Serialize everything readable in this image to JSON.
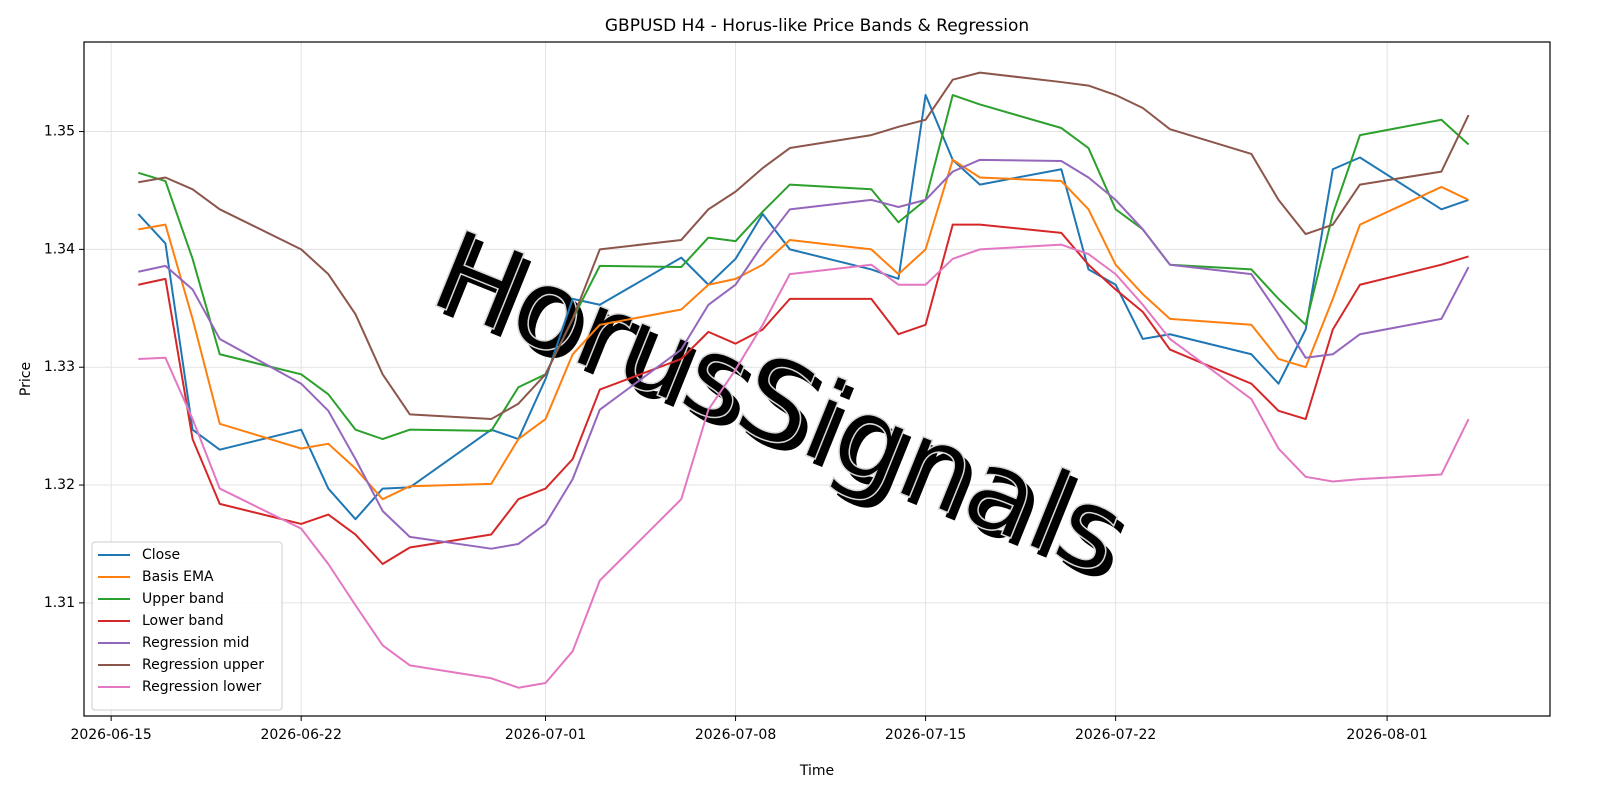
{
  "chart_data": {
    "type": "line",
    "title": "GBPUSD H4 - Horus-like Price Bands & Regression",
    "xlabel": "Time",
    "ylabel": "Price",
    "watermark": "HorusSignals",
    "grid": true,
    "legend": "lower left",
    "xlim": [
      "2026-06-14",
      "2026-08-07"
    ],
    "xticks": [
      "2026-06-15",
      "2026-06-22",
      "2026-07-01",
      "2026-07-08",
      "2026-07-15",
      "2026-07-22",
      "2026-08-01"
    ],
    "ylim": [
      1.3004,
      1.3576
    ],
    "yticks": [
      1.31,
      1.32,
      1.33,
      1.34,
      1.35
    ],
    "x": [
      "2026-06-16",
      "2026-06-17",
      "2026-06-18",
      "2026-06-19",
      "2026-06-22",
      "2026-06-23",
      "2026-06-24",
      "2026-06-25",
      "2026-06-26",
      "2026-06-29",
      "2026-06-30",
      "2026-07-01",
      "2026-07-02",
      "2026-07-03",
      "2026-07-06",
      "2026-07-07",
      "2026-07-08",
      "2026-07-09",
      "2026-07-10",
      "2026-07-13",
      "2026-07-14",
      "2026-07-15",
      "2026-07-16",
      "2026-07-17",
      "2026-07-20",
      "2026-07-21",
      "2026-07-22",
      "2026-07-23",
      "2026-07-24",
      "2026-07-27",
      "2026-07-28",
      "2026-07-29",
      "2026-07-30",
      "2026-07-31",
      "2026-08-03",
      "2026-08-04"
    ],
    "series": [
      {
        "name": "Close",
        "color": "#1f77b4",
        "values": [
          1.343,
          1.3405,
          1.3247,
          1.323,
          1.3247,
          1.3197,
          1.3171,
          1.3197,
          1.3198,
          1.3247,
          1.3239,
          1.329,
          1.3358,
          1.3353,
          1.3393,
          1.337,
          1.3392,
          1.343,
          1.34,
          1.3383,
          1.3375,
          1.3531,
          1.3476,
          1.3455,
          1.3468,
          1.3383,
          1.337,
          1.3324,
          1.3328,
          1.3311,
          1.3286,
          1.3332,
          1.3468,
          1.3478,
          1.3434,
          1.3442
        ]
      },
      {
        "name": "Basis EMA",
        "color": "#ff7f0e",
        "values": [
          1.3417,
          1.3421,
          1.3341,
          1.3252,
          1.3231,
          1.3235,
          1.3214,
          1.3188,
          1.3199,
          1.3201,
          1.3239,
          1.3256,
          1.3311,
          1.3336,
          1.3349,
          1.337,
          1.3375,
          1.3387,
          1.3408,
          1.34,
          1.3379,
          1.34,
          1.3476,
          1.3461,
          1.3458,
          1.3434,
          1.3387,
          1.3362,
          1.3341,
          1.3336,
          1.3307,
          1.33,
          1.3358,
          1.3421,
          1.3453,
          1.3442
        ]
      },
      {
        "name": "Upper band",
        "color": "#2ca02c",
        "values": [
          1.3465,
          1.3458,
          1.3392,
          1.3311,
          1.3294,
          1.3277,
          1.3247,
          1.3239,
          1.3247,
          1.3246,
          1.3283,
          1.3294,
          1.3341,
          1.3386,
          1.3385,
          1.341,
          1.3407,
          1.3432,
          1.3455,
          1.3451,
          1.3423,
          1.3442,
          1.3531,
          1.3523,
          1.3503,
          1.3486,
          1.3434,
          1.3417,
          1.3387,
          1.3383,
          1.3358,
          1.3336,
          1.343,
          1.3497,
          1.351,
          1.3489
        ]
      },
      {
        "name": "Lower band",
        "color": "#d62728",
        "values": [
          1.337,
          1.3375,
          1.3239,
          1.3184,
          1.3167,
          1.3175,
          1.3158,
          1.3133,
          1.3147,
          1.3158,
          1.3188,
          1.3197,
          1.3222,
          1.3281,
          1.3307,
          1.333,
          1.332,
          1.3332,
          1.3358,
          1.3358,
          1.3328,
          1.3336,
          1.3421,
          1.3421,
          1.3414,
          1.3387,
          1.3366,
          1.3347,
          1.3315,
          1.3286,
          1.3263,
          1.3256,
          1.3332,
          1.337,
          1.3387,
          1.3394
        ]
      },
      {
        "name": "Regression mid",
        "color": "#9467bd",
        "values": [
          1.3381,
          1.3386,
          1.3366,
          1.3324,
          1.3286,
          1.3263,
          1.3222,
          1.3178,
          1.3156,
          1.3146,
          1.315,
          1.3167,
          1.3205,
          1.3264,
          1.3315,
          1.3353,
          1.337,
          1.3404,
          1.3434,
          1.3442,
          1.3436,
          1.3442,
          1.3466,
          1.3476,
          1.3475,
          1.3461,
          1.3442,
          1.3417,
          1.3387,
          1.3379,
          1.3345,
          1.3308,
          1.3311,
          1.3328,
          1.3341,
          1.3385
        ]
      },
      {
        "name": "Regression upper",
        "color": "#8c564b",
        "values": [
          1.3457,
          1.3461,
          1.3451,
          1.3434,
          1.34,
          1.3379,
          1.3345,
          1.3294,
          1.326,
          1.3256,
          1.3269,
          1.3294,
          1.3341,
          1.34,
          1.3408,
          1.3434,
          1.3449,
          1.3469,
          1.3486,
          1.3497,
          1.3504,
          1.351,
          1.3544,
          1.355,
          1.3542,
          1.3539,
          1.3531,
          1.352,
          1.3502,
          1.3481,
          1.3442,
          1.3413,
          1.3421,
          1.3455,
          1.3466,
          1.3514
        ]
      },
      {
        "name": "Regression lower",
        "color": "#e377c2",
        "values": [
          1.3307,
          1.3308,
          1.3256,
          1.3197,
          1.3163,
          1.3133,
          1.3098,
          1.3064,
          1.3047,
          1.3036,
          1.3028,
          1.3032,
          1.3059,
          1.3119,
          1.3188,
          1.3264,
          1.3298,
          1.3336,
          1.3379,
          1.3387,
          1.337,
          1.337,
          1.3392,
          1.34,
          1.3404,
          1.3396,
          1.3379,
          1.3353,
          1.3324,
          1.3273,
          1.3231,
          1.3207,
          1.3203,
          1.3205,
          1.3209,
          1.3256
        ]
      }
    ]
  }
}
